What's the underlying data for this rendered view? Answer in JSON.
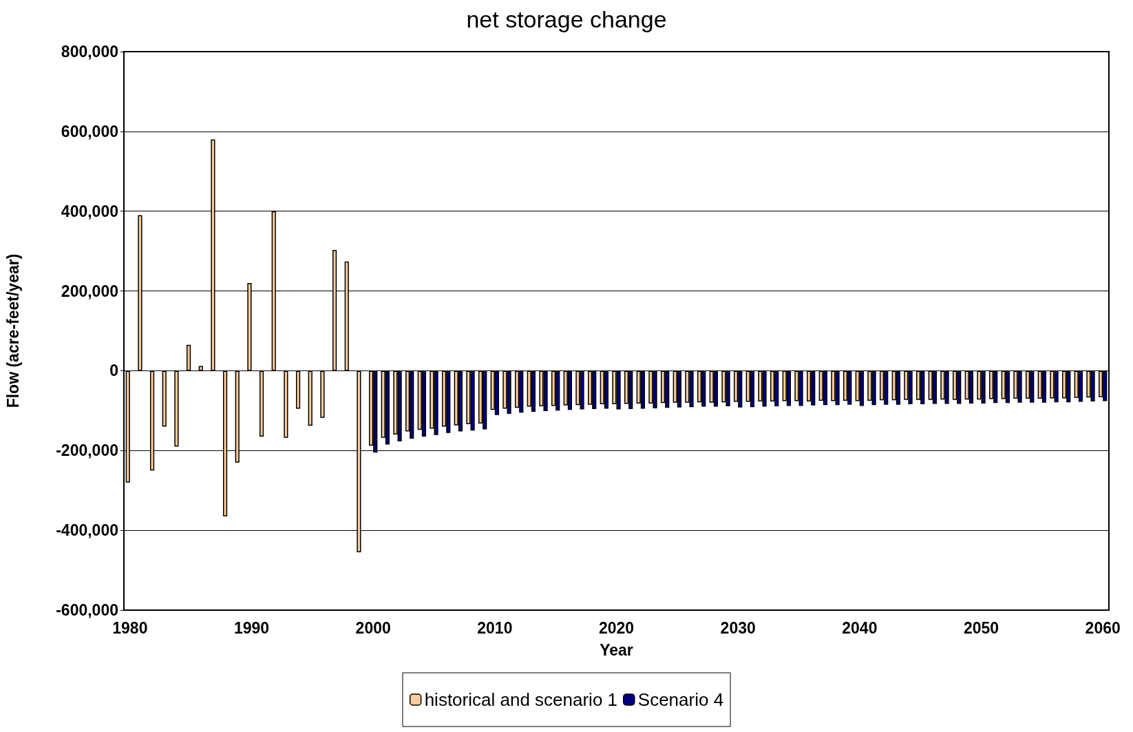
{
  "chart_data": {
    "type": "bar",
    "title": "net storage change",
    "xlabel": "Year",
    "ylabel": "Flow (acre-feet/year)",
    "categories": [
      "1980",
      null,
      null,
      null,
      null,
      null,
      null,
      null,
      null,
      null,
      "1990",
      null,
      null,
      null,
      null,
      null,
      null,
      null,
      null,
      null,
      "2000",
      null,
      null,
      null,
      null,
      null,
      null,
      null,
      null,
      null,
      "2010",
      null,
      null,
      null,
      null,
      null,
      null,
      null,
      null,
      null,
      "2020",
      null,
      null,
      null,
      null,
      null,
      null,
      null,
      null,
      null,
      "2030",
      null,
      null,
      null,
      null,
      null,
      null,
      null,
      null,
      null,
      "2040",
      null,
      null,
      null,
      null,
      null,
      null,
      null,
      null,
      null,
      "2050",
      null,
      null,
      null,
      null,
      null,
      null,
      null,
      null,
      null,
      "2060"
    ],
    "series": [
      {
        "name": "historical and scenario 1",
        "color": "#ffcc99",
        "values": [
          -280000,
          390000,
          -250000,
          -140000,
          -190000,
          65000,
          12000,
          580000,
          -365000,
          -230000,
          220000,
          -165000,
          400000,
          -168000,
          -95000,
          -138000,
          -118000,
          303000,
          274000,
          -455000,
          -188000,
          -168000,
          -160000,
          -152000,
          -148000,
          -145000,
          -140000,
          -137000,
          -134000,
          -132000,
          -98000,
          -95000,
          -93000,
          -90000,
          -89000,
          -88000,
          -87000,
          -86000,
          -85000,
          -84000,
          -84000,
          -83000,
          -82000,
          -82000,
          -81000,
          -80000,
          -80000,
          -79000,
          -80000,
          -79000,
          -78000,
          -78000,
          -77000,
          -77000,
          -76000,
          -76000,
          -77000,
          -75000,
          -76000,
          -75000,
          -76000,
          -75000,
          -74000,
          -74000,
          -73000,
          -73000,
          -73000,
          -72000,
          -73000,
          -72000,
          -72000,
          -71000,
          -71000,
          -70000,
          -70000,
          -70000,
          -69000,
          -69000,
          -68000,
          -67000,
          -66000
        ]
      },
      {
        "name": "Scenario 4",
        "color": "#000080",
        "values": [
          null,
          null,
          null,
          null,
          null,
          null,
          null,
          null,
          null,
          null,
          null,
          null,
          null,
          null,
          null,
          null,
          null,
          null,
          null,
          null,
          -205000,
          -185000,
          -177000,
          -170000,
          -165000,
          -161000,
          -156000,
          -152000,
          -150000,
          -147000,
          -111000,
          -108000,
          -105000,
          -103000,
          -101000,
          -100000,
          -98000,
          -97000,
          -96000,
          -95000,
          -97000,
          -96000,
          -95000,
          -94000,
          -93000,
          -92000,
          -91000,
          -90000,
          -90000,
          -89000,
          -92000,
          -91000,
          -90000,
          -89000,
          -88000,
          -88000,
          -87000,
          -86000,
          -86000,
          -85000,
          -88000,
          -86000,
          -85000,
          -85000,
          -84000,
          -84000,
          -83000,
          -83000,
          -83000,
          -82000,
          -82000,
          -81000,
          -81000,
          -80000,
          -80000,
          -80000,
          -79000,
          -79000,
          -78000,
          -77000,
          -76000
        ]
      }
    ],
    "ylim": [
      -600000,
      800000
    ],
    "yticks": [
      {
        "value": -600000,
        "label": "-600,000"
      },
      {
        "value": -400000,
        "label": "-400,000"
      },
      {
        "value": -200000,
        "label": "-200,000"
      },
      0,
      {
        "value": 200000,
        "label": "200,000"
      },
      {
        "value": 400000,
        "label": "400,000"
      },
      {
        "value": 600000,
        "label": "600,000"
      },
      {
        "value": 800000,
        "label": "800,000"
      }
    ],
    "grid": "y",
    "legend": "bottom"
  }
}
